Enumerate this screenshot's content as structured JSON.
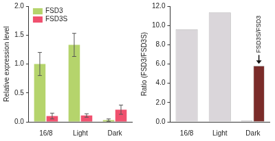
{
  "chart_data": [
    {
      "type": "bar",
      "y_label": "Relative expression level",
      "categories": [
        "16/8",
        "Light",
        "Dark"
      ],
      "series": [
        {
          "name": "FSD3",
          "color": "#b5d46c",
          "values": [
            1.0,
            1.33,
            0.03
          ],
          "errors": [
            0.2,
            0.2,
            0.02
          ]
        },
        {
          "name": "FSD3S",
          "color": "#f0506e",
          "values": [
            0.1,
            0.11,
            0.21
          ],
          "errors": [
            0.05,
            0.03,
            0.08
          ]
        }
      ],
      "ylim": [
        0,
        2
      ],
      "yticks": [
        {
          "value": 0,
          "label": "0.0"
        },
        {
          "value": 0.5,
          "label": "0.5"
        },
        {
          "value": 1,
          "label": "1.0"
        },
        {
          "value": 1.5,
          "label": "1.5"
        },
        {
          "value": 2,
          "label": "2.0"
        }
      ],
      "legend": "upper left",
      "grid": false
    },
    {
      "type": "bar",
      "y_label": "Ratio (FSD3/FSD3S)",
      "categories": [
        "16/8",
        "Light",
        "Dark"
      ],
      "series": [
        {
          "color": "#dad6da",
          "values": [
            9.6,
            11.35,
            0.15
          ]
        },
        {
          "color": "#7a2c29",
          "values": [
            null,
            null,
            5.8
          ]
        }
      ],
      "ylim": [
        0,
        12
      ],
      "yticks": [
        {
          "value": 0,
          "label": "0.0"
        },
        {
          "value": 2,
          "label": "2.0"
        },
        {
          "value": 4,
          "label": "4.0"
        },
        {
          "value": 6,
          "label": "6.0"
        },
        {
          "value": 8,
          "label": "8.0"
        },
        {
          "value": 10,
          "label": "10.0"
        },
        {
          "value": 12,
          "label": "12.0"
        }
      ],
      "annotations": [
        {
          "text": "FSD3S/FSD3",
          "category": "Dark",
          "series": 1
        }
      ],
      "grid": false
    }
  ]
}
